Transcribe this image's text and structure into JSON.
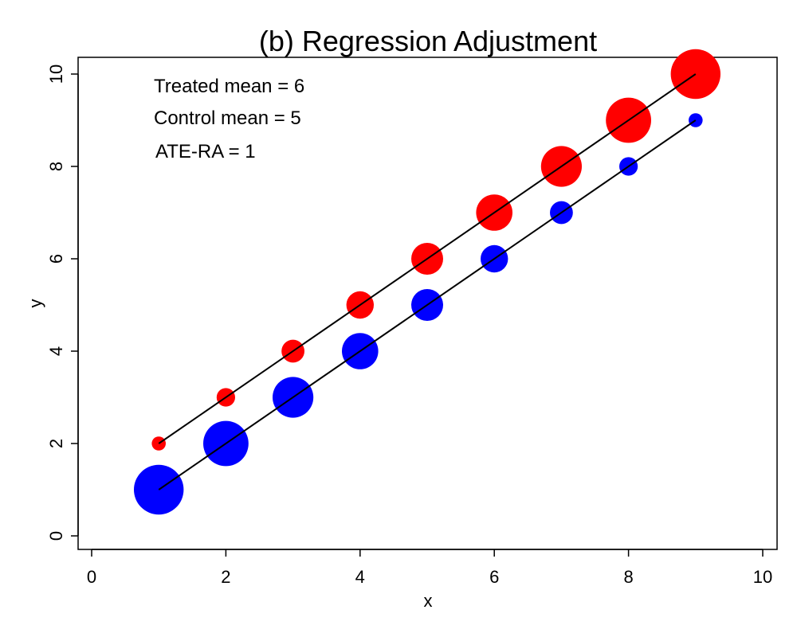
{
  "chart_data": {
    "type": "scatter",
    "title": "(b) Regression Adjustment",
    "xlabel": "x",
    "ylabel": "y",
    "xlim": [
      0,
      10
    ],
    "ylim": [
      0,
      10
    ],
    "x_ticks": [
      0,
      2,
      4,
      6,
      8,
      10
    ],
    "y_ticks": [
      0,
      2,
      4,
      6,
      8,
      10
    ],
    "grid": false,
    "annotations": [
      "Treated mean = 6",
      "Control mean = 5",
      "ATE-RA = 1"
    ],
    "series": [
      {
        "color": "#ff0000",
        "points": [
          {
            "x": 1,
            "y": 2,
            "weight": 1
          },
          {
            "x": 2,
            "y": 3,
            "weight": 2
          },
          {
            "x": 3,
            "y": 4,
            "weight": 3
          },
          {
            "x": 4,
            "y": 5,
            "weight": 4
          },
          {
            "x": 5,
            "y": 6,
            "weight": 5
          },
          {
            "x": 6,
            "y": 7,
            "weight": 6
          },
          {
            "x": 7,
            "y": 8,
            "weight": 7
          },
          {
            "x": 8,
            "y": 9,
            "weight": 8
          },
          {
            "x": 9,
            "y": 10,
            "weight": 9
          }
        ],
        "fit_line": {
          "from": [
            1,
            2
          ],
          "to": [
            9,
            10
          ]
        }
      },
      {
        "color": "#0000ff",
        "points": [
          {
            "x": 1,
            "y": 1,
            "weight": 9
          },
          {
            "x": 2,
            "y": 2,
            "weight": 8
          },
          {
            "x": 3,
            "y": 3,
            "weight": 7
          },
          {
            "x": 4,
            "y": 4,
            "weight": 6
          },
          {
            "x": 5,
            "y": 5,
            "weight": 5
          },
          {
            "x": 6,
            "y": 6,
            "weight": 4
          },
          {
            "x": 7,
            "y": 7,
            "weight": 3
          },
          {
            "x": 8,
            "y": 8,
            "weight": 2
          },
          {
            "x": 9,
            "y": 9,
            "weight": 1
          }
        ],
        "fit_line": {
          "from": [
            1,
            1
          ],
          "to": [
            9,
            9
          ]
        }
      }
    ]
  }
}
